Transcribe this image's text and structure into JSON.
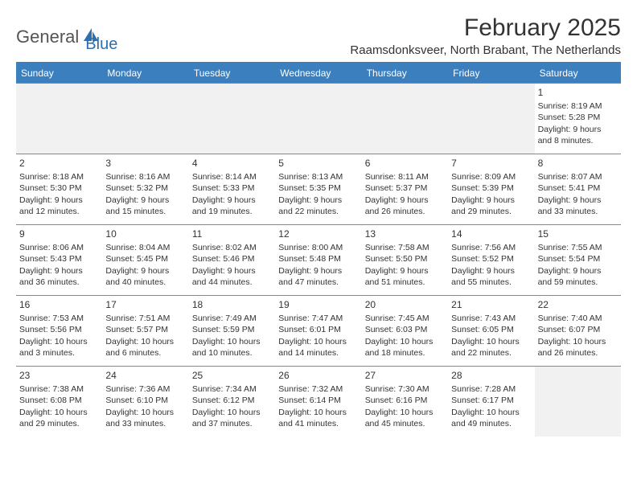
{
  "logo": {
    "word1": "General",
    "word2": "Blue"
  },
  "title": "February 2025",
  "location": "Raamsdonksveer, North Brabant, The Netherlands",
  "colors": {
    "header_bg": "#3b7fbf",
    "header_text": "#ffffff",
    "border": "#888888",
    "text": "#333333",
    "logo_gray": "#555555",
    "logo_blue": "#2f6fae",
    "empty_bg": "#f1f1f1",
    "page_bg": "#ffffff"
  },
  "typography": {
    "title_fontsize": 30,
    "location_fontsize": 15,
    "dayheader_fontsize": 12,
    "daynum_fontsize": 12,
    "cell_fontsize": 10.5
  },
  "calendar": {
    "day_names": [
      "Sunday",
      "Monday",
      "Tuesday",
      "Wednesday",
      "Thursday",
      "Friday",
      "Saturday"
    ],
    "weeks": [
      [
        {
          "empty": true
        },
        {
          "empty": true
        },
        {
          "empty": true
        },
        {
          "empty": true
        },
        {
          "empty": true
        },
        {
          "empty": true
        },
        {
          "num": "1",
          "sunrise": "Sunrise: 8:19 AM",
          "sunset": "Sunset: 5:28 PM",
          "daylight1": "Daylight: 9 hours",
          "daylight2": "and 8 minutes."
        }
      ],
      [
        {
          "num": "2",
          "sunrise": "Sunrise: 8:18 AM",
          "sunset": "Sunset: 5:30 PM",
          "daylight1": "Daylight: 9 hours",
          "daylight2": "and 12 minutes."
        },
        {
          "num": "3",
          "sunrise": "Sunrise: 8:16 AM",
          "sunset": "Sunset: 5:32 PM",
          "daylight1": "Daylight: 9 hours",
          "daylight2": "and 15 minutes."
        },
        {
          "num": "4",
          "sunrise": "Sunrise: 8:14 AM",
          "sunset": "Sunset: 5:33 PM",
          "daylight1": "Daylight: 9 hours",
          "daylight2": "and 19 minutes."
        },
        {
          "num": "5",
          "sunrise": "Sunrise: 8:13 AM",
          "sunset": "Sunset: 5:35 PM",
          "daylight1": "Daylight: 9 hours",
          "daylight2": "and 22 minutes."
        },
        {
          "num": "6",
          "sunrise": "Sunrise: 8:11 AM",
          "sunset": "Sunset: 5:37 PM",
          "daylight1": "Daylight: 9 hours",
          "daylight2": "and 26 minutes."
        },
        {
          "num": "7",
          "sunrise": "Sunrise: 8:09 AM",
          "sunset": "Sunset: 5:39 PM",
          "daylight1": "Daylight: 9 hours",
          "daylight2": "and 29 minutes."
        },
        {
          "num": "8",
          "sunrise": "Sunrise: 8:07 AM",
          "sunset": "Sunset: 5:41 PM",
          "daylight1": "Daylight: 9 hours",
          "daylight2": "and 33 minutes."
        }
      ],
      [
        {
          "num": "9",
          "sunrise": "Sunrise: 8:06 AM",
          "sunset": "Sunset: 5:43 PM",
          "daylight1": "Daylight: 9 hours",
          "daylight2": "and 36 minutes."
        },
        {
          "num": "10",
          "sunrise": "Sunrise: 8:04 AM",
          "sunset": "Sunset: 5:45 PM",
          "daylight1": "Daylight: 9 hours",
          "daylight2": "and 40 minutes."
        },
        {
          "num": "11",
          "sunrise": "Sunrise: 8:02 AM",
          "sunset": "Sunset: 5:46 PM",
          "daylight1": "Daylight: 9 hours",
          "daylight2": "and 44 minutes."
        },
        {
          "num": "12",
          "sunrise": "Sunrise: 8:00 AM",
          "sunset": "Sunset: 5:48 PM",
          "daylight1": "Daylight: 9 hours",
          "daylight2": "and 47 minutes."
        },
        {
          "num": "13",
          "sunrise": "Sunrise: 7:58 AM",
          "sunset": "Sunset: 5:50 PM",
          "daylight1": "Daylight: 9 hours",
          "daylight2": "and 51 minutes."
        },
        {
          "num": "14",
          "sunrise": "Sunrise: 7:56 AM",
          "sunset": "Sunset: 5:52 PM",
          "daylight1": "Daylight: 9 hours",
          "daylight2": "and 55 minutes."
        },
        {
          "num": "15",
          "sunrise": "Sunrise: 7:55 AM",
          "sunset": "Sunset: 5:54 PM",
          "daylight1": "Daylight: 9 hours",
          "daylight2": "and 59 minutes."
        }
      ],
      [
        {
          "num": "16",
          "sunrise": "Sunrise: 7:53 AM",
          "sunset": "Sunset: 5:56 PM",
          "daylight1": "Daylight: 10 hours",
          "daylight2": "and 3 minutes."
        },
        {
          "num": "17",
          "sunrise": "Sunrise: 7:51 AM",
          "sunset": "Sunset: 5:57 PM",
          "daylight1": "Daylight: 10 hours",
          "daylight2": "and 6 minutes."
        },
        {
          "num": "18",
          "sunrise": "Sunrise: 7:49 AM",
          "sunset": "Sunset: 5:59 PM",
          "daylight1": "Daylight: 10 hours",
          "daylight2": "and 10 minutes."
        },
        {
          "num": "19",
          "sunrise": "Sunrise: 7:47 AM",
          "sunset": "Sunset: 6:01 PM",
          "daylight1": "Daylight: 10 hours",
          "daylight2": "and 14 minutes."
        },
        {
          "num": "20",
          "sunrise": "Sunrise: 7:45 AM",
          "sunset": "Sunset: 6:03 PM",
          "daylight1": "Daylight: 10 hours",
          "daylight2": "and 18 minutes."
        },
        {
          "num": "21",
          "sunrise": "Sunrise: 7:43 AM",
          "sunset": "Sunset: 6:05 PM",
          "daylight1": "Daylight: 10 hours",
          "daylight2": "and 22 minutes."
        },
        {
          "num": "22",
          "sunrise": "Sunrise: 7:40 AM",
          "sunset": "Sunset: 6:07 PM",
          "daylight1": "Daylight: 10 hours",
          "daylight2": "and 26 minutes."
        }
      ],
      [
        {
          "num": "23",
          "sunrise": "Sunrise: 7:38 AM",
          "sunset": "Sunset: 6:08 PM",
          "daylight1": "Daylight: 10 hours",
          "daylight2": "and 29 minutes."
        },
        {
          "num": "24",
          "sunrise": "Sunrise: 7:36 AM",
          "sunset": "Sunset: 6:10 PM",
          "daylight1": "Daylight: 10 hours",
          "daylight2": "and 33 minutes."
        },
        {
          "num": "25",
          "sunrise": "Sunrise: 7:34 AM",
          "sunset": "Sunset: 6:12 PM",
          "daylight1": "Daylight: 10 hours",
          "daylight2": "and 37 minutes."
        },
        {
          "num": "26",
          "sunrise": "Sunrise: 7:32 AM",
          "sunset": "Sunset: 6:14 PM",
          "daylight1": "Daylight: 10 hours",
          "daylight2": "and 41 minutes."
        },
        {
          "num": "27",
          "sunrise": "Sunrise: 7:30 AM",
          "sunset": "Sunset: 6:16 PM",
          "daylight1": "Daylight: 10 hours",
          "daylight2": "and 45 minutes."
        },
        {
          "num": "28",
          "sunrise": "Sunrise: 7:28 AM",
          "sunset": "Sunset: 6:17 PM",
          "daylight1": "Daylight: 10 hours",
          "daylight2": "and 49 minutes."
        },
        {
          "empty": true
        }
      ]
    ]
  }
}
